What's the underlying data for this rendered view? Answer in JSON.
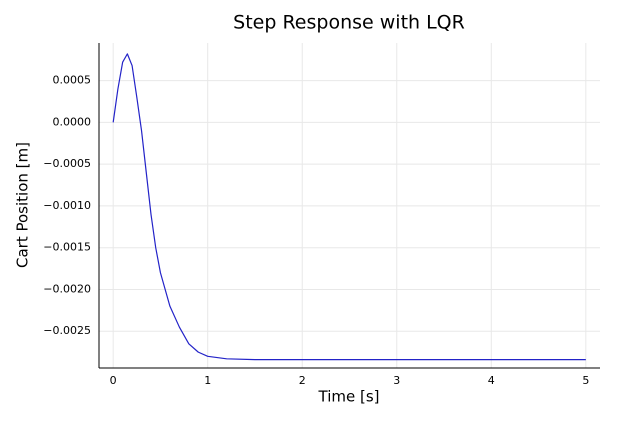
{
  "chart_data": {
    "type": "line",
    "title": "Step Response with LQR",
    "xlabel": "Time [s]",
    "ylabel": "Cart Position [m]",
    "x": [
      0,
      0.05,
      0.1,
      0.15,
      0.2,
      0.25,
      0.3,
      0.35,
      0.4,
      0.45,
      0.5,
      0.6,
      0.7,
      0.8,
      0.9,
      1.0,
      1.2,
      1.5,
      2,
      3,
      4,
      5
    ],
    "series": [
      {
        "color": "#2323c8",
        "values": [
          0,
          0.0004,
          0.00072,
          0.00082,
          0.00068,
          0.0003,
          -0.0001,
          -0.0006,
          -0.0011,
          -0.0015,
          -0.0018,
          -0.0022,
          -0.00245,
          -0.00265,
          -0.00275,
          -0.0028,
          -0.00283,
          -0.00284,
          -0.00284,
          -0.00284,
          -0.00284,
          -0.00284
        ]
      }
    ],
    "xlim": [
      -0.15,
      5.15
    ],
    "ylim": [
      -0.00294,
      0.00095
    ],
    "xticks": [
      0,
      1,
      2,
      3,
      4,
      5
    ],
    "yticks": [
      0.0005,
      {
        "value": 0,
        "label": "0.0000"
      },
      {
        "value": -0.0005,
        "label": "−0.0005"
      },
      {
        "value": -0.001,
        "label": "−0.0010"
      },
      {
        "value": -0.0015,
        "label": "−0.0015"
      },
      {
        "value": -0.002,
        "label": "−0.0020"
      },
      {
        "value": -0.0025,
        "label": "−0.0025"
      }
    ],
    "grid": true
  }
}
